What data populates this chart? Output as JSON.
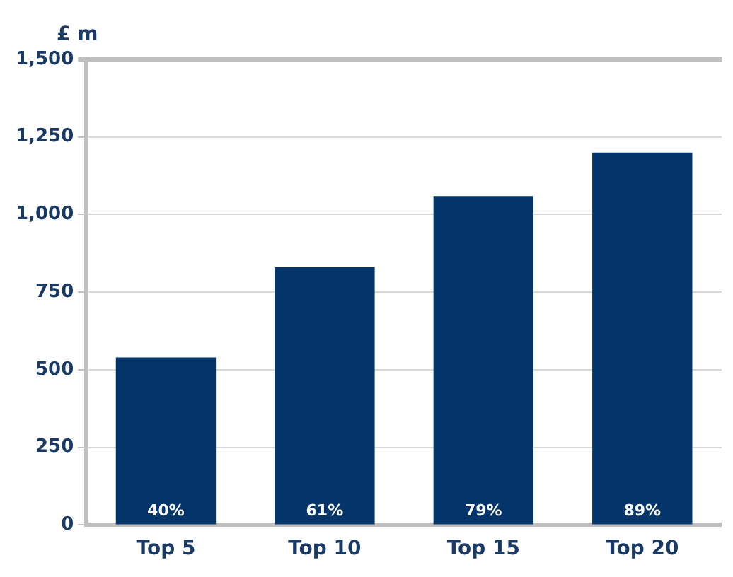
{
  "chart_data": {
    "type": "bar",
    "ylabel": "£ m",
    "categories": [
      "Top 5",
      "Top 10",
      "Top 15",
      "Top 20"
    ],
    "values": [
      540,
      830,
      1060,
      1200
    ],
    "annotations": [
      {
        "text": "40%",
        "x": "Top 5",
        "y": 0
      },
      {
        "text": "61%",
        "x": "Top 10",
        "y": 0
      },
      {
        "text": "79%",
        "x": "Top 15",
        "y": 0
      },
      {
        "text": "89%",
        "x": "Top 20",
        "y": 0
      }
    ],
    "color": "#03356a",
    "ylim": [
      0,
      1500
    ],
    "yticks": [
      0,
      250,
      500,
      750,
      {
        "value": 1000,
        "label": "1,000"
      },
      {
        "value": 1250,
        "label": "1,250"
      },
      {
        "value": 1500,
        "label": "1,500"
      }
    ],
    "grid": "y",
    "legend": false
  }
}
